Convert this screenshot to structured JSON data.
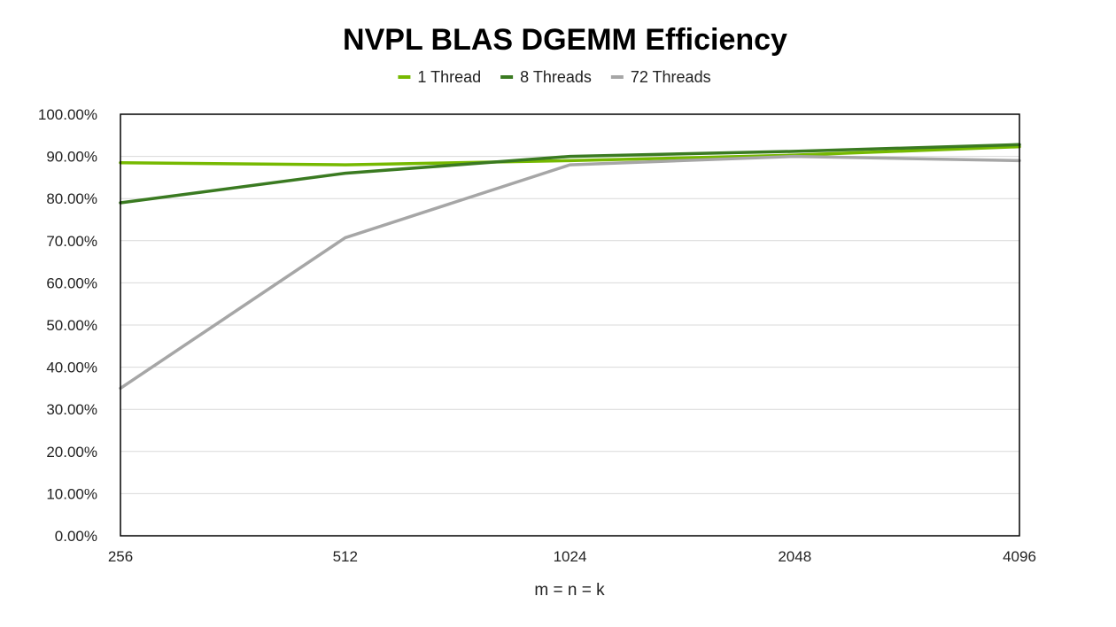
{
  "chart_data": {
    "type": "line",
    "title": "NVPL BLAS DGEMM Efficiency",
    "xlabel": "m = n = k",
    "ylabel": "",
    "categories": [
      "256",
      "512",
      "1024",
      "2048",
      "4096"
    ],
    "yticks": [
      "0.00%",
      "10.00%",
      "20.00%",
      "30.00%",
      "40.00%",
      "50.00%",
      "60.00%",
      "70.00%",
      "80.00%",
      "90.00%",
      "100.00%"
    ],
    "ylim": [
      0,
      100
    ],
    "grid": true,
    "legend_position": "top",
    "series": [
      {
        "name": "1 Thread",
        "color": "#76b900",
        "values": [
          88.5,
          88.0,
          89.0,
          90.3,
          92.3
        ]
      },
      {
        "name": "8 Threads",
        "color": "#3a7a21",
        "values": [
          79.0,
          86.0,
          90.0,
          91.2,
          92.8
        ]
      },
      {
        "name": "72 Threads",
        "color": "#a6a6a6",
        "values": [
          35.0,
          70.7,
          88.0,
          90.0,
          89.0
        ]
      }
    ]
  }
}
